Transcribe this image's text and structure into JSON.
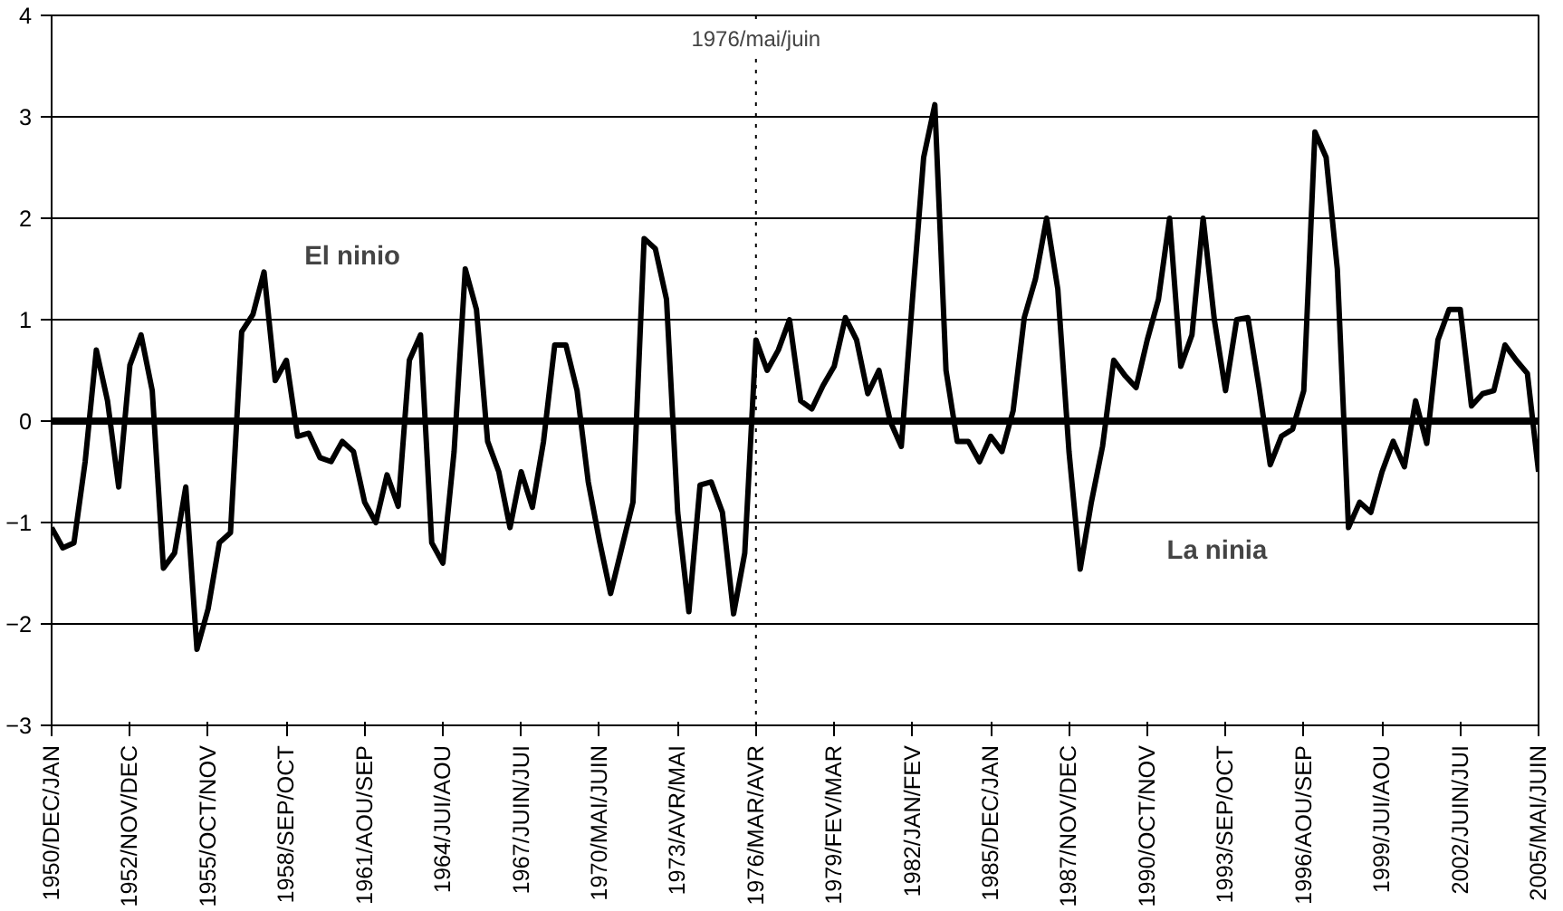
{
  "chart_data": {
    "type": "line",
    "grid": "y",
    "marker": "none",
    "line_style": "solid",
    "ylim": [
      -3,
      4
    ],
    "yticks": [
      -3,
      -2,
      -1,
      0,
      1,
      2,
      3,
      4
    ],
    "categories": [
      "1950/DEC/JAN",
      null,
      null,
      null,
      null,
      null,
      null,
      "1952/NOV/DEC",
      null,
      null,
      null,
      null,
      null,
      null,
      "1955/OCT/NOV",
      null,
      null,
      null,
      null,
      null,
      null,
      "1958/SEP/OCT",
      null,
      null,
      null,
      null,
      null,
      null,
      "1961/AOU/SEP",
      null,
      null,
      null,
      null,
      null,
      null,
      "1964/JUI/AOU",
      null,
      null,
      null,
      null,
      null,
      null,
      "1967/JUIN/JUI",
      null,
      null,
      null,
      null,
      null,
      null,
      "1970/MAI/JUIN",
      null,
      null,
      null,
      null,
      null,
      null,
      "1973/AVR/MAI",
      null,
      null,
      null,
      null,
      null,
      null,
      "1976/MAR/AVR",
      null,
      null,
      null,
      null,
      null,
      null,
      "1979/FEV/MAR",
      null,
      null,
      null,
      null,
      null,
      null,
      "1982/JAN/FEV",
      null,
      null,
      null,
      null,
      null,
      null,
      "1985/DEC/JAN",
      null,
      null,
      null,
      null,
      null,
      null,
      "1987/NOV/DEC",
      null,
      null,
      null,
      null,
      null,
      null,
      "1990/OCT/NOV",
      null,
      null,
      null,
      null,
      null,
      null,
      "1993/SEP/OCT",
      null,
      null,
      null,
      null,
      null,
      null,
      "1996/AOU/SEP",
      null,
      null,
      null,
      null,
      null,
      null,
      "1999/JUI/AOU",
      null,
      null,
      null,
      null,
      null,
      null,
      "2002/JUIN/JUI",
      null,
      null,
      null,
      null,
      null,
      null,
      "2005/MAI/JUIN"
    ],
    "ref_lines": [
      {
        "axis": "y",
        "value": 0,
        "label": null,
        "color": "#000000",
        "line_style": "solid"
      },
      {
        "axis": "x",
        "value": "1976/MAR/AVR",
        "label": "1976/mai/juin",
        "color": "#000000",
        "line_style": "dotted"
      }
    ],
    "annotations": [
      "El ninio",
      "La ninia"
    ],
    "series": [
      {
        "color": "#000000",
        "values": [
          -1.05,
          -1.25,
          -1.2,
          -0.4,
          0.7,
          0.2,
          -0.65,
          0.55,
          0.85,
          0.3,
          -1.45,
          -1.3,
          -0.65,
          -2.25,
          -1.85,
          -1.2,
          -1.1,
          0.88,
          1.05,
          1.47,
          0.4,
          0.6,
          -0.15,
          -0.12,
          -0.36,
          -0.4,
          -0.2,
          -0.3,
          -0.8,
          -1.0,
          -0.53,
          -0.84,
          0.6,
          0.85,
          -1.2,
          -1.4,
          -0.3,
          1.5,
          1.1,
          -0.2,
          -0.5,
          -1.05,
          -0.5,
          -0.85,
          -0.2,
          0.75,
          0.75,
          0.3,
          -0.6,
          -1.18,
          -1.7,
          -1.25,
          -0.8,
          1.8,
          1.7,
          1.2,
          -0.9,
          -1.88,
          -0.63,
          -0.6,
          -0.9,
          -1.9,
          -1.3,
          0.8,
          0.5,
          0.7,
          1.0,
          0.2,
          0.12,
          0.35,
          0.54,
          1.02,
          0.8,
          0.27,
          0.5,
          0.0,
          -0.25,
          1.2,
          2.6,
          3.12,
          0.5,
          -0.2,
          -0.2,
          -0.4,
          -0.15,
          -0.3,
          0.1,
          1.02,
          1.4,
          2.0,
          1.3,
          -0.3,
          -1.46,
          -0.8,
          -0.25,
          0.6,
          0.45,
          0.33,
          0.8,
          1.2,
          2.0,
          0.54,
          0.85,
          2.0,
          1.0,
          0.3,
          1.0,
          1.02,
          0.33,
          -0.43,
          -0.15,
          -0.08,
          0.3,
          2.85,
          2.6,
          1.5,
          -1.05,
          -0.8,
          -0.9,
          -0.5,
          -0.2,
          -0.45,
          0.2,
          -0.22,
          0.8,
          1.1,
          1.1,
          0.15,
          0.27,
          0.3,
          0.75,
          0.6,
          0.47,
          -0.5
        ]
      }
    ]
  }
}
